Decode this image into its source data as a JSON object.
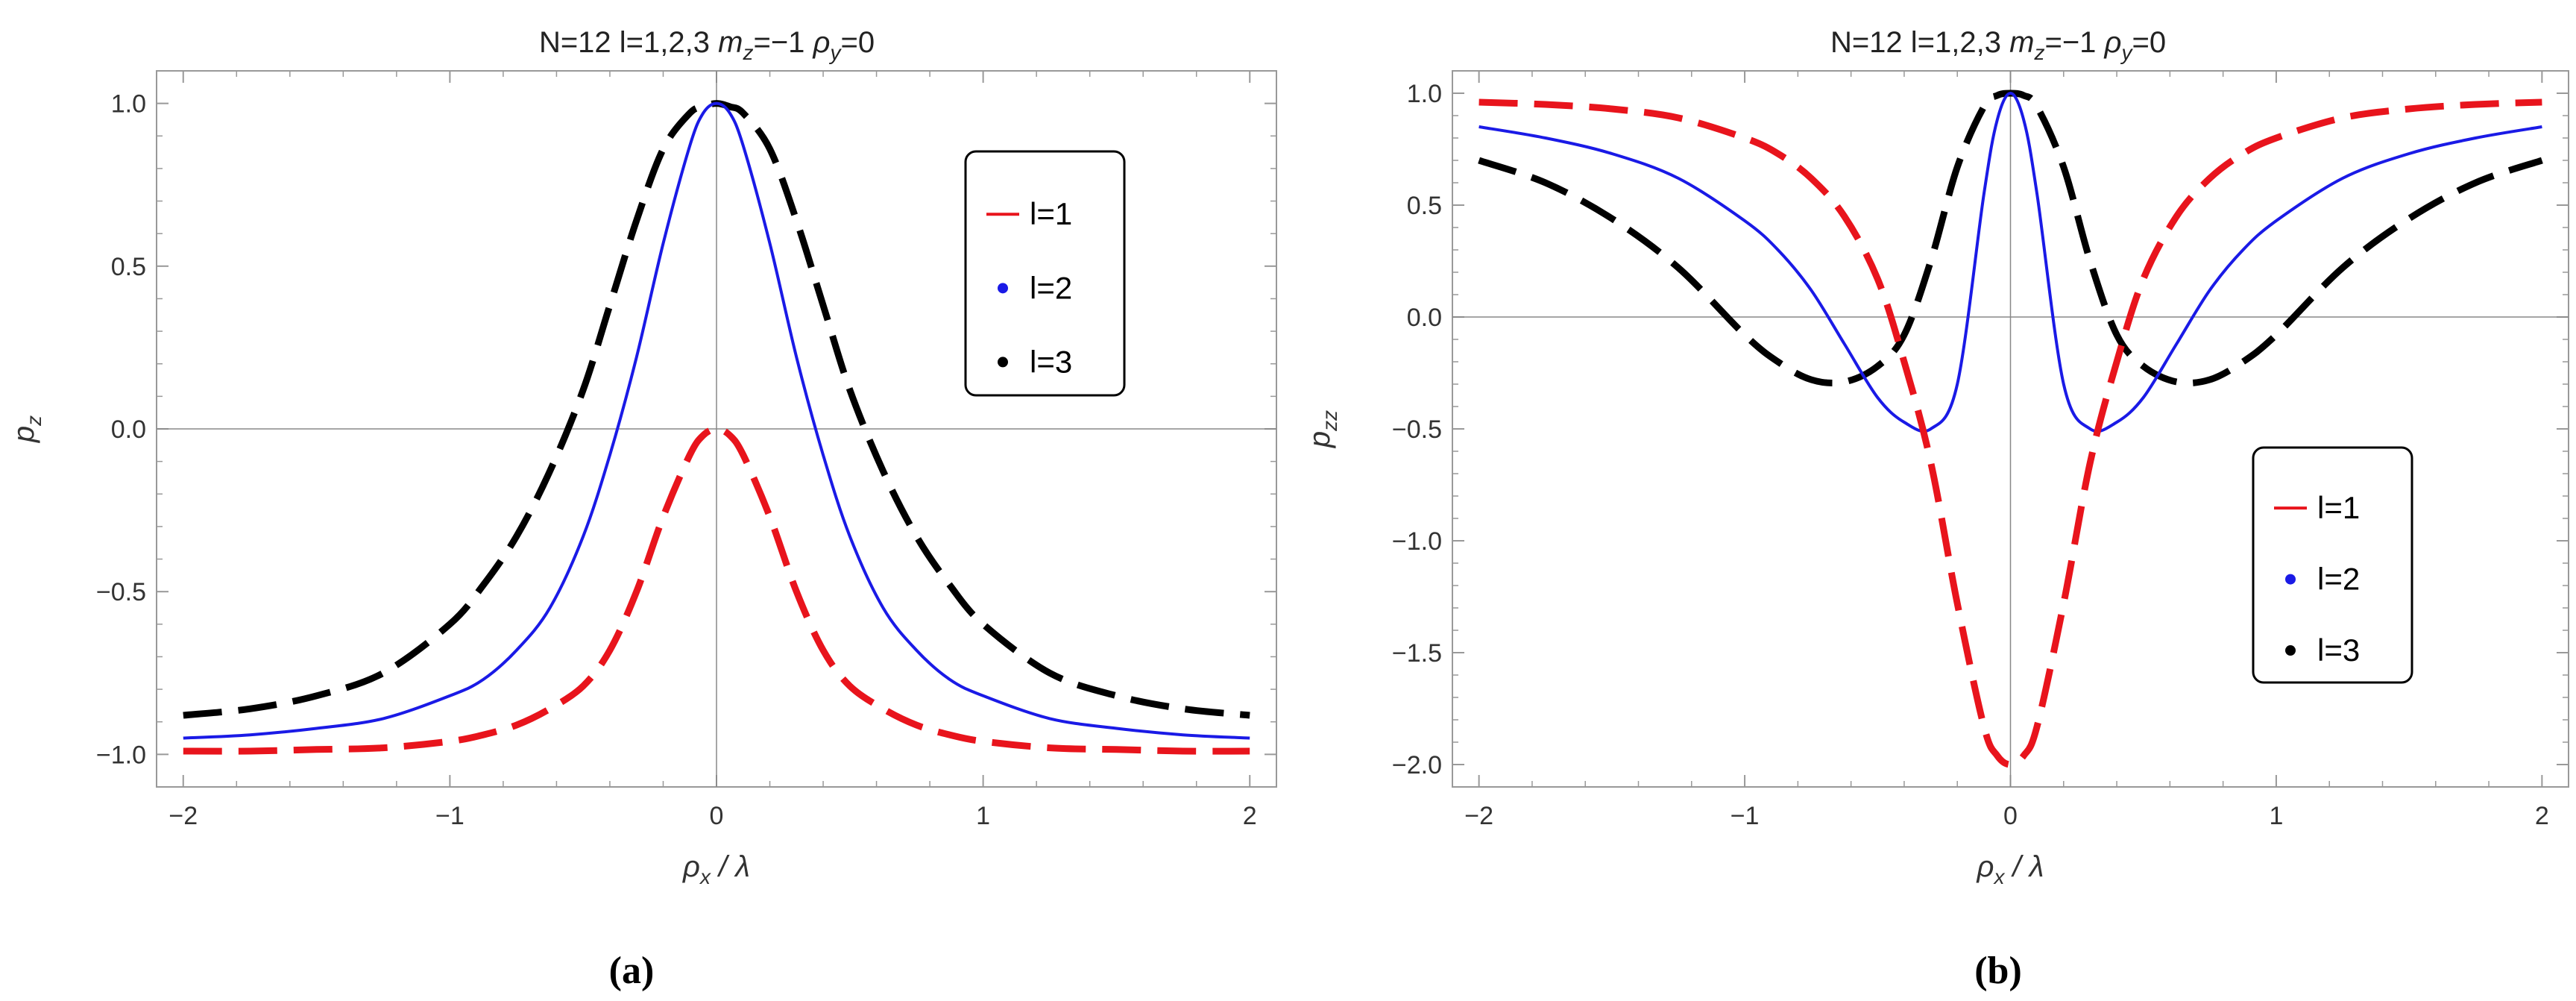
{
  "chart_data": [
    {
      "type": "line",
      "title": "N=12 l=1,2,3 m_z=−1 ρ_y=0",
      "title_parts": {
        "prefix": "N=12 l=1,2,3 ",
        "m": "m",
        "m_sub": "z",
        "m_val": "=−1 ",
        "rho": "ρ",
        "rho_sub": "y",
        "rho_val": "=0"
      },
      "xlabel": {
        "main": "ρ",
        "sub": "x",
        "rest": "/ λ"
      },
      "ylabel": {
        "main": "p",
        "sub": "z"
      },
      "xlim": [
        -2.1,
        2.1
      ],
      "ylim": [
        -1.1,
        1.1
      ],
      "xticks": [
        -2,
        -1,
        0,
        1,
        2
      ],
      "xtick_labels": [
        "−2",
        "−1",
        "0",
        "1",
        "2"
      ],
      "yticks": [
        -1.0,
        -0.5,
        0.0,
        0.5,
        1.0
      ],
      "ytick_labels": [
        "−1.0",
        "−0.5",
        "0.0",
        "0.5",
        "1.0"
      ],
      "legend_position": "top-right",
      "legend": [
        {
          "label": "l=1",
          "marker": "line",
          "color": "#e8141c"
        },
        {
          "label": "l=2",
          "marker": "dot",
          "color": "#1a1ae6"
        },
        {
          "label": "l=3",
          "marker": "dot",
          "color": "#000000"
        }
      ],
      "x": [
        -2.0,
        -1.75,
        -1.5,
        -1.25,
        -1.0,
        -0.875,
        -0.75,
        -0.625,
        -0.5,
        -0.4,
        -0.3,
        -0.2,
        -0.1,
        -0.05,
        0.0,
        0.05,
        0.1,
        0.2,
        0.3,
        0.4,
        0.5,
        0.625,
        0.75,
        0.875,
        1.0,
        1.25,
        1.5,
        1.75,
        2.0
      ],
      "series": [
        {
          "name": "l=1",
          "color": "#e8141c",
          "style": "dashed",
          "values": [
            -0.99,
            -0.99,
            -0.985,
            -0.98,
            -0.96,
            -0.94,
            -0.91,
            -0.86,
            -0.79,
            -0.68,
            -0.5,
            -0.27,
            -0.08,
            -0.02,
            0.0,
            -0.02,
            -0.08,
            -0.27,
            -0.5,
            -0.68,
            -0.79,
            -0.86,
            -0.91,
            -0.94,
            -0.96,
            -0.98,
            -0.985,
            -0.99,
            -0.99
          ]
        },
        {
          "name": "l=2",
          "color": "#1a1ae6",
          "style": "solid",
          "values": [
            -0.95,
            -0.94,
            -0.92,
            -0.89,
            -0.82,
            -0.77,
            -0.68,
            -0.55,
            -0.33,
            -0.08,
            0.22,
            0.57,
            0.87,
            0.97,
            1.0,
            0.97,
            0.87,
            0.57,
            0.22,
            -0.08,
            -0.33,
            -0.55,
            -0.68,
            -0.77,
            -0.82,
            -0.89,
            -0.92,
            -0.94,
            -0.95
          ]
        },
        {
          "name": "l=3",
          "color": "#000000",
          "style": "dashed",
          "values": [
            -0.88,
            -0.86,
            -0.82,
            -0.75,
            -0.6,
            -0.48,
            -0.33,
            -0.13,
            0.12,
            0.38,
            0.64,
            0.86,
            0.97,
            0.99,
            1.0,
            0.99,
            0.97,
            0.86,
            0.64,
            0.38,
            0.12,
            -0.13,
            -0.33,
            -0.48,
            -0.6,
            -0.75,
            -0.82,
            -0.86,
            -0.88
          ]
        }
      ],
      "panel_label": "(a)"
    },
    {
      "type": "line",
      "title": "N=12 l=1,2,3 m_z=−1 ρ_y=0",
      "title_parts": {
        "prefix": "N=12 l=1,2,3 ",
        "m": "m",
        "m_sub": "z",
        "m_val": "=−1 ",
        "rho": "ρ",
        "rho_sub": "y",
        "rho_val": "=0"
      },
      "xlabel": {
        "main": "ρ",
        "sub": "x",
        "rest": "/ λ"
      },
      "ylabel": {
        "main": "p",
        "sub": "zz"
      },
      "xlim": [
        -2.1,
        2.1
      ],
      "ylim": [
        -2.1,
        1.1
      ],
      "xticks": [
        -2,
        -1,
        0,
        1,
        2
      ],
      "xtick_labels": [
        "−2",
        "−1",
        "0",
        "1",
        "2"
      ],
      "yticks": [
        -2.0,
        -1.5,
        -1.0,
        -0.5,
        0.0,
        0.5,
        1.0
      ],
      "ytick_labels": [
        "−2.0",
        "−1.5",
        "−1.0",
        "−0.5",
        "0.0",
        "0.5",
        "1.0"
      ],
      "legend_position": "bottom-right",
      "legend": [
        {
          "label": "l=1",
          "marker": "line",
          "color": "#e8141c"
        },
        {
          "label": "l=2",
          "marker": "dot",
          "color": "#1a1ae6"
        },
        {
          "label": "l=3",
          "marker": "dot",
          "color": "#000000"
        }
      ],
      "x": [
        -2.0,
        -1.75,
        -1.5,
        -1.25,
        -1.0,
        -0.875,
        -0.75,
        -0.625,
        -0.5,
        -0.4,
        -0.3,
        -0.2,
        -0.1,
        -0.05,
        0.0,
        0.05,
        0.1,
        0.2,
        0.3,
        0.4,
        0.5,
        0.625,
        0.75,
        0.875,
        1.0,
        1.25,
        1.5,
        1.75,
        2.0
      ],
      "series": [
        {
          "name": "l=1",
          "color": "#e8141c",
          "style": "dashed",
          "values": [
            0.96,
            0.95,
            0.93,
            0.89,
            0.8,
            0.73,
            0.62,
            0.45,
            0.17,
            -0.2,
            -0.65,
            -1.28,
            -1.83,
            -1.96,
            -2.0,
            -1.96,
            -1.83,
            -1.28,
            -0.65,
            -0.2,
            0.17,
            0.45,
            0.62,
            0.73,
            0.8,
            0.89,
            0.93,
            0.95,
            0.96
          ]
        },
        {
          "name": "l=2",
          "color": "#1a1ae6",
          "style": "solid",
          "values": [
            0.85,
            0.8,
            0.73,
            0.62,
            0.43,
            0.3,
            0.12,
            -0.12,
            -0.36,
            -0.47,
            -0.5,
            -0.3,
            0.55,
            0.88,
            1.0,
            0.88,
            0.55,
            -0.3,
            -0.5,
            -0.47,
            -0.36,
            -0.12,
            0.12,
            0.3,
            0.43,
            0.62,
            0.73,
            0.8,
            0.85
          ]
        },
        {
          "name": "l=3",
          "color": "#000000",
          "style": "dashed",
          "values": [
            0.7,
            0.6,
            0.44,
            0.22,
            -0.08,
            -0.2,
            -0.28,
            -0.29,
            -0.22,
            -0.08,
            0.25,
            0.67,
            0.94,
            0.99,
            1.0,
            0.99,
            0.94,
            0.67,
            0.25,
            -0.08,
            -0.22,
            -0.29,
            -0.28,
            -0.2,
            -0.08,
            0.22,
            0.44,
            0.6,
            0.7
          ]
        }
      ],
      "panel_label": "(b)"
    }
  ]
}
